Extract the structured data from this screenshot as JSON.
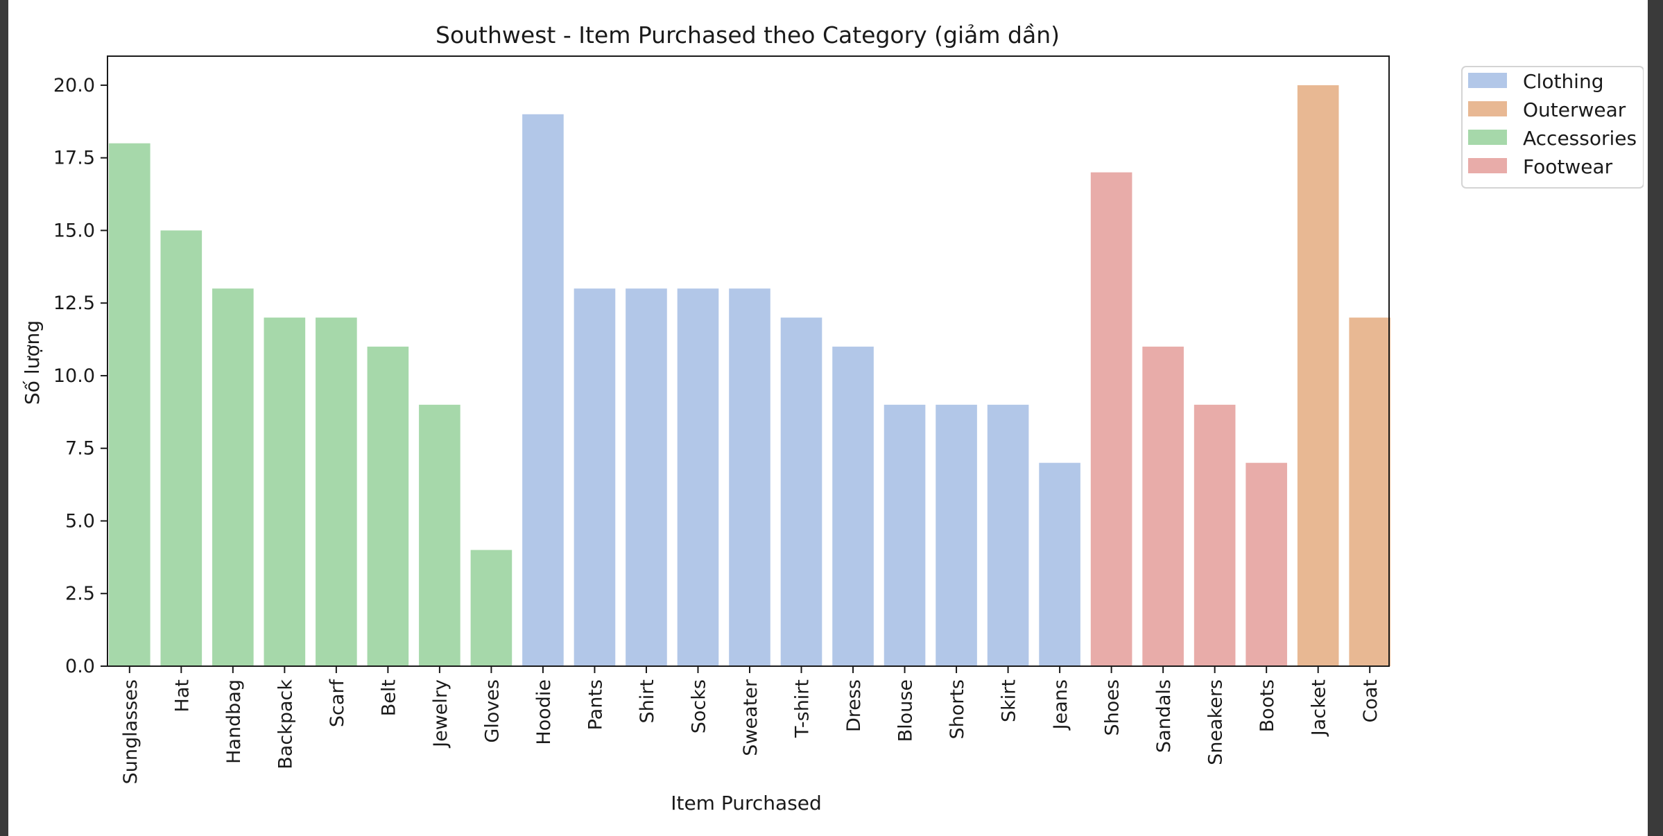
{
  "chart_data": {
    "type": "bar",
    "title": "Southwest - Item Purchased theo Category (giảm dần)",
    "xlabel": "Item Purchased",
    "ylabel": "Số lượng",
    "ylim": [
      0,
      21
    ],
    "yticks": [
      0,
      2.5,
      5,
      7.5,
      10,
      12.5,
      15,
      17.5,
      20
    ],
    "ytick_labels": [
      "0.0",
      "2.5",
      "5.0",
      "7.5",
      "10.0",
      "12.5",
      "15.0",
      "17.5",
      "20.0"
    ],
    "grid": false,
    "legend_position": "outside top-right",
    "categories": [
      "Sunglasses",
      "Hat",
      "Handbag",
      "Backpack",
      "Scarf",
      "Belt",
      "Jewelry",
      "Gloves",
      "Hoodie",
      "Pants",
      "Shirt",
      "Socks",
      "Sweater",
      "T-shirt",
      "Dress",
      "Blouse",
      "Shorts",
      "Skirt",
      "Jeans",
      "Shoes",
      "Sandals",
      "Sneakers",
      "Boots",
      "Jacket",
      "Coat"
    ],
    "values": [
      18,
      15,
      13,
      12,
      12,
      11,
      9,
      4,
      19,
      13,
      13,
      13,
      13,
      12,
      11,
      9,
      9,
      9,
      7,
      17,
      11,
      9,
      7,
      20,
      12
    ],
    "bar_category": [
      "Accessories",
      "Accessories",
      "Accessories",
      "Accessories",
      "Accessories",
      "Accessories",
      "Accessories",
      "Accessories",
      "Clothing",
      "Clothing",
      "Clothing",
      "Clothing",
      "Clothing",
      "Clothing",
      "Clothing",
      "Clothing",
      "Clothing",
      "Clothing",
      "Clothing",
      "Footwear",
      "Footwear",
      "Footwear",
      "Footwear",
      "Outerwear",
      "Outerwear"
    ],
    "legend": [
      {
        "name": "Clothing",
        "color": "#b2c7e8"
      },
      {
        "name": "Outerwear",
        "color": "#e8b893"
      },
      {
        "name": "Accessories",
        "color": "#a6d8aa"
      },
      {
        "name": "Footwear",
        "color": "#e8aca9"
      }
    ]
  }
}
